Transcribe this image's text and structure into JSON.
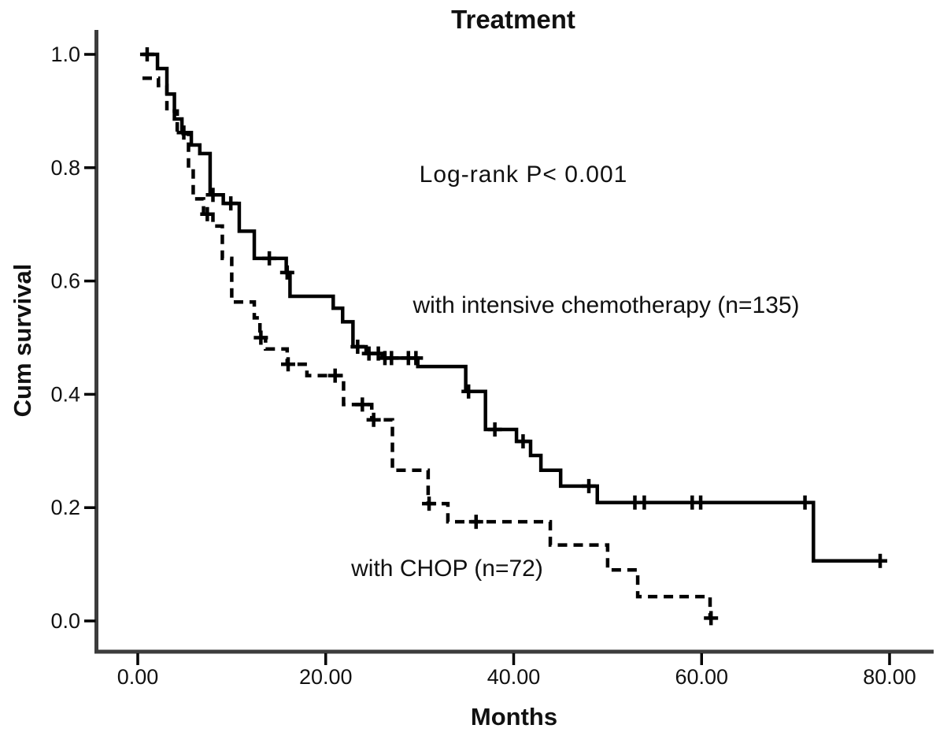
{
  "chart_data": {
    "type": "line",
    "chart_kind": "kaplan_meier_survival",
    "title": "Treatment",
    "annotation": "Log-rank  P< 0.001",
    "xlabel": "Months",
    "ylabel": "Cum survival",
    "grid": false,
    "legend_position": "labels-inside-plot",
    "x_axis": {
      "range": [
        0,
        84.7
      ],
      "tick_values": [
        0,
        20,
        40,
        60,
        80
      ],
      "tick_labels": [
        "0.00",
        "20.00",
        "40.00",
        "60.00",
        "80.00"
      ]
    },
    "y_axis": {
      "range": [
        0,
        1.0
      ],
      "tick_values": [
        0.0,
        0.2,
        0.4,
        0.6,
        0.8,
        1.0
      ],
      "tick_labels": [
        "0.0",
        "0.2",
        "0.4",
        "0.6",
        "0.8",
        "1.0"
      ]
    },
    "series": [
      {
        "name": "with intensive chemotherapy (n=135)",
        "line_style": "solid",
        "color": "#000000",
        "start": [
          0.5,
          1.0
        ],
        "steps": [
          [
            2.1,
            0.975
          ],
          [
            3.1,
            0.93
          ],
          [
            3.9,
            0.886
          ],
          [
            4.7,
            0.862
          ],
          [
            5.7,
            0.84
          ],
          [
            6.6,
            0.825
          ],
          [
            7.7,
            0.752
          ],
          [
            9.1,
            0.737
          ],
          [
            10.8,
            0.688
          ],
          [
            12.4,
            0.64
          ],
          [
            15.8,
            0.615
          ],
          [
            16.2,
            0.573
          ],
          [
            20.8,
            0.552
          ],
          [
            21.8,
            0.528
          ],
          [
            22.9,
            0.484
          ],
          [
            24.3,
            0.472
          ],
          [
            26.0,
            0.464
          ],
          [
            29.8,
            0.449
          ],
          [
            34.9,
            0.405
          ],
          [
            37.0,
            0.338
          ],
          [
            40.3,
            0.317
          ],
          [
            41.8,
            0.292
          ],
          [
            42.9,
            0.266
          ],
          [
            45.0,
            0.238
          ],
          [
            48.9,
            0.209
          ],
          [
            71.9,
            0.106
          ]
        ],
        "end_time": 79.2,
        "censor_times": [
          1.0,
          4.9,
          8.0,
          9.9,
          14.0,
          15.9,
          23.4,
          24.6,
          25.6,
          26.3,
          27.0,
          28.8,
          29.6,
          35.2,
          38.0,
          41.0,
          48.0,
          52.9,
          53.9,
          59.0,
          59.9,
          71.0,
          79.0
        ]
      },
      {
        "name": "with CHOP (n=72)",
        "line_style": "dashed",
        "color": "#000000",
        "start": [
          0.5,
          0.958
        ],
        "steps": [
          [
            2.2,
            0.945
          ],
          [
            3.1,
            0.9
          ],
          [
            4.2,
            0.86
          ],
          [
            5.4,
            0.8
          ],
          [
            5.9,
            0.745
          ],
          [
            7.0,
            0.718
          ],
          [
            8.0,
            0.697
          ],
          [
            9.0,
            0.64
          ],
          [
            10.0,
            0.563
          ],
          [
            12.4,
            0.535
          ],
          [
            13.0,
            0.5
          ],
          [
            13.6,
            0.48
          ],
          [
            15.9,
            0.453
          ],
          [
            18.0,
            0.433
          ],
          [
            21.9,
            0.382
          ],
          [
            24.9,
            0.355
          ],
          [
            27.1,
            0.266
          ],
          [
            30.9,
            0.207
          ],
          [
            33.0,
            0.175
          ],
          [
            43.9,
            0.134
          ],
          [
            50.0,
            0.09
          ],
          [
            53.2,
            0.043
          ],
          [
            60.9,
            0.005
          ]
        ],
        "end_time": 61.2,
        "censor_times": [
          7.4,
          13.1,
          16.0,
          21.0,
          23.9,
          25.1,
          31.0,
          36.0,
          61.0
        ]
      }
    ]
  }
}
